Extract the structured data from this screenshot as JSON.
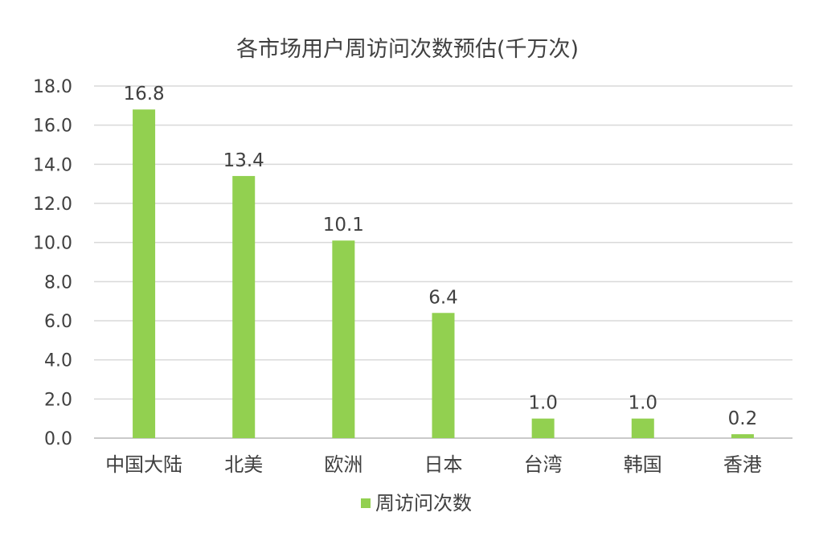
{
  "chart_data": {
    "type": "bar",
    "title": "各市场用户周访问次数预估(千万次)",
    "categories": [
      "中国大陆",
      "北美",
      "欧洲",
      "日本",
      "台湾",
      "韩国",
      "香港"
    ],
    "series": [
      {
        "name": "周访问次数",
        "values": [
          16.8,
          13.4,
          10.1,
          6.4,
          1.0,
          1.0,
          0.2
        ],
        "color": "#92D050"
      }
    ],
    "data_labels": [
      "16.8",
      "13.4",
      "10.1",
      "6.4",
      "1.0",
      "1.0",
      "0.2"
    ],
    "y_ticks": [
      "0.0",
      "2.0",
      "4.0",
      "6.0",
      "8.0",
      "10.0",
      "12.0",
      "14.0",
      "16.0",
      "18.0"
    ],
    "ylim": [
      0,
      18
    ],
    "xlabel": "",
    "ylabel": "",
    "grid": true,
    "legend_position": "bottom",
    "colors": {
      "bar": "#92D050",
      "grid": "#D9D9D9",
      "text": "#404040"
    }
  }
}
